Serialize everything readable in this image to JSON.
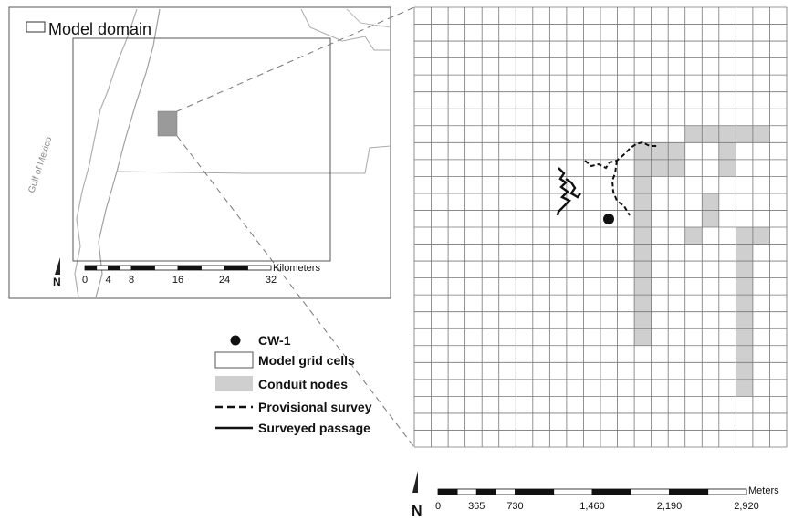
{
  "inset": {
    "domain_label": "Model domain",
    "water_label": "Gulf of Mexico",
    "scale": {
      "unit": "Kilometers",
      "ticks": [
        "0",
        "4",
        "8",
        "16",
        "24",
        "32"
      ]
    },
    "north_label": "N"
  },
  "grid": {
    "columns": 22,
    "rows": 26,
    "conduit_cells": [
      [
        13,
        8
      ],
      [
        13,
        9
      ],
      [
        13,
        10
      ],
      [
        13,
        11
      ],
      [
        13,
        12
      ],
      [
        13,
        13
      ],
      [
        13,
        14
      ],
      [
        13,
        15
      ],
      [
        13,
        16
      ],
      [
        13,
        17
      ],
      [
        13,
        18
      ],
      [
        13,
        19
      ],
      [
        14,
        8
      ],
      [
        14,
        9
      ],
      [
        15,
        9
      ],
      [
        15,
        8
      ],
      [
        16,
        7
      ],
      [
        16,
        13
      ],
      [
        17,
        7
      ],
      [
        17,
        12
      ],
      [
        17,
        11
      ],
      [
        18,
        7
      ],
      [
        18,
        8
      ],
      [
        18,
        9
      ],
      [
        19,
        7
      ],
      [
        19,
        13
      ],
      [
        20,
        7
      ],
      [
        20,
        13
      ],
      [
        19,
        14
      ],
      [
        19,
        15
      ],
      [
        19,
        16
      ],
      [
        19,
        17
      ],
      [
        19,
        18
      ],
      [
        19,
        19
      ],
      [
        19,
        20
      ],
      [
        19,
        21
      ],
      [
        19,
        22
      ]
    ]
  },
  "legend": {
    "well": "CW-1",
    "grid_cells": "Model grid cells",
    "conduit_nodes": "Conduit nodes",
    "provisional": "Provisional survey",
    "surveyed": "Surveyed passage"
  },
  "scale": {
    "unit": "Meters",
    "ticks": [
      "0",
      "365",
      "730",
      "1,460",
      "2,190",
      "2,920"
    ]
  },
  "north_label": "N",
  "colors": {
    "conduit": "#cfcfcf",
    "grid_line": "#777777",
    "domain_fill": "#9a9a9a",
    "river": "#b8b8b8"
  }
}
